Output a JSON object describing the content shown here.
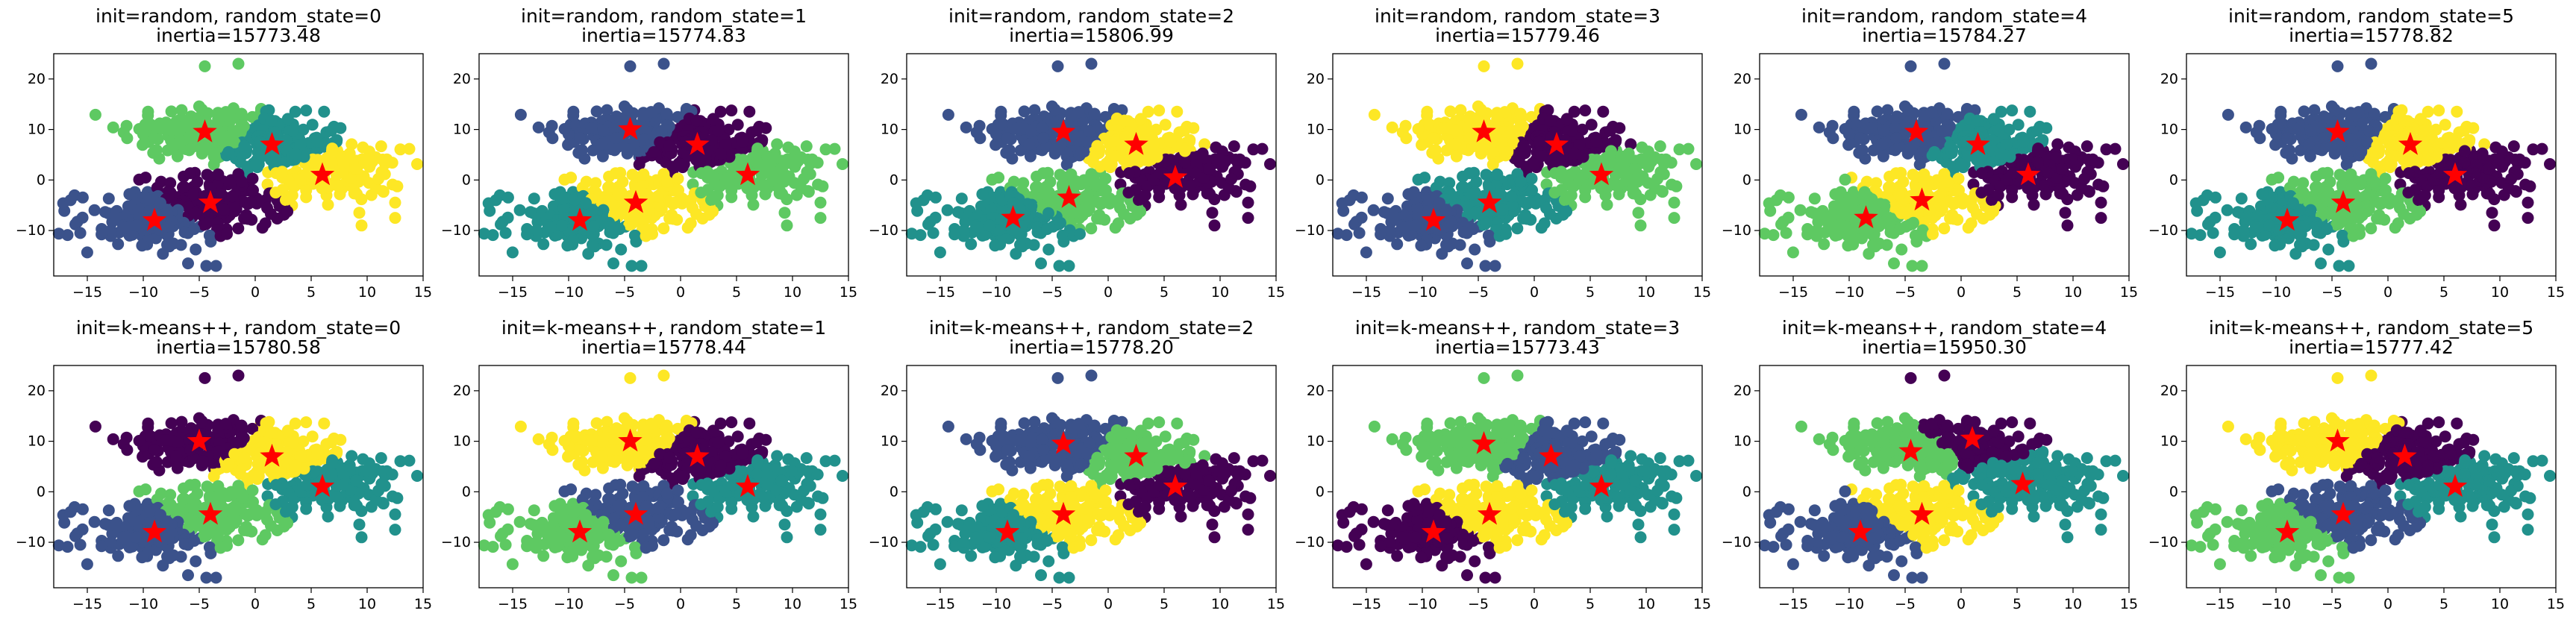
{
  "figure": {
    "rows": 2,
    "cols": 6
  },
  "style": {
    "palette": {
      "viridis_0": "#440154",
      "viridis_1": "#3b528b",
      "viridis_2": "#21918c",
      "viridis_3": "#5ec962",
      "viridis_4": "#fde725"
    },
    "centroid_color": "#ff0000",
    "centroid_marker": "star",
    "axis_color": "#000000",
    "background": "#ffffff"
  },
  "chart_data": [
    {
      "type": "scatter",
      "title": "init=random, random_state=0\ninertia=15773.48",
      "xlim": [
        -18,
        15
      ],
      "ylim": [
        -19,
        25
      ],
      "xticks": [
        -15,
        -10,
        -5,
        0,
        5,
        10,
        15
      ],
      "yticks": [
        -10,
        0,
        10,
        20
      ],
      "grid": false,
      "centroids": [
        {
          "x": -4.5,
          "y": 9.5,
          "cluster": 3
        },
        {
          "x": 1.5,
          "y": 7,
          "cluster": 2
        },
        {
          "x": 6,
          "y": 1,
          "cluster": 4
        },
        {
          "x": -4,
          "y": -4.5,
          "cluster": 0
        },
        {
          "x": -9,
          "y": -8,
          "cluster": 1
        }
      ]
    },
    {
      "type": "scatter",
      "title": "init=random, random_state=1\ninertia=15774.83",
      "xlim": [
        -18,
        15
      ],
      "ylim": [
        -19,
        25
      ],
      "xticks": [
        -15,
        -10,
        -5,
        0,
        5,
        10,
        15
      ],
      "yticks": [
        -10,
        0,
        10,
        20
      ],
      "grid": false,
      "centroids": [
        {
          "x": -4.5,
          "y": 10,
          "cluster": 1
        },
        {
          "x": 1.5,
          "y": 7,
          "cluster": 0
        },
        {
          "x": 6,
          "y": 1,
          "cluster": 3
        },
        {
          "x": -4,
          "y": -4.5,
          "cluster": 4
        },
        {
          "x": -9,
          "y": -8,
          "cluster": 2
        }
      ]
    },
    {
      "type": "scatter",
      "title": "init=random, random_state=2\ninertia=15806.99",
      "xlim": [
        -18,
        15
      ],
      "ylim": [
        -19,
        25
      ],
      "xticks": [
        -15,
        -10,
        -5,
        0,
        5,
        10,
        15
      ],
      "yticks": [
        -10,
        0,
        10,
        20
      ],
      "grid": false,
      "centroids": [
        {
          "x": -4,
          "y": 9.5,
          "cluster": 1
        },
        {
          "x": 2.5,
          "y": 7,
          "cluster": 4
        },
        {
          "x": 6,
          "y": 0.5,
          "cluster": 0
        },
        {
          "x": -3.5,
          "y": -3.5,
          "cluster": 3
        },
        {
          "x": -8.5,
          "y": -7.5,
          "cluster": 2
        }
      ]
    },
    {
      "type": "scatter",
      "title": "init=random, random_state=3\ninertia=15779.46",
      "xlim": [
        -18,
        15
      ],
      "ylim": [
        -19,
        25
      ],
      "xticks": [
        -15,
        -10,
        -5,
        0,
        5,
        10,
        15
      ],
      "yticks": [
        -10,
        0,
        10,
        20
      ],
      "grid": false,
      "centroids": [
        {
          "x": -4.5,
          "y": 9.5,
          "cluster": 4
        },
        {
          "x": 2,
          "y": 7,
          "cluster": 0
        },
        {
          "x": 6,
          "y": 1,
          "cluster": 3
        },
        {
          "x": -4,
          "y": -4.5,
          "cluster": 2
        },
        {
          "x": -9,
          "y": -8,
          "cluster": 1
        }
      ]
    },
    {
      "type": "scatter",
      "title": "init=random, random_state=4\ninertia=15784.27",
      "xlim": [
        -18,
        15
      ],
      "ylim": [
        -19,
        25
      ],
      "xticks": [
        -15,
        -10,
        -5,
        0,
        5,
        10,
        15
      ],
      "yticks": [
        -10,
        0,
        10,
        20
      ],
      "grid": false,
      "centroids": [
        {
          "x": -4,
          "y": 9.5,
          "cluster": 1
        },
        {
          "x": 1.5,
          "y": 7,
          "cluster": 2
        },
        {
          "x": 6,
          "y": 1,
          "cluster": 0
        },
        {
          "x": -3.5,
          "y": -4,
          "cluster": 4
        },
        {
          "x": -8.5,
          "y": -7.5,
          "cluster": 3
        }
      ]
    },
    {
      "type": "scatter",
      "title": "init=random, random_state=5\ninertia=15778.82",
      "xlim": [
        -18,
        15
      ],
      "ylim": [
        -19,
        25
      ],
      "xticks": [
        -15,
        -10,
        -5,
        0,
        5,
        10,
        15
      ],
      "yticks": [
        -10,
        0,
        10,
        20
      ],
      "grid": false,
      "centroids": [
        {
          "x": -4.5,
          "y": 9.5,
          "cluster": 1
        },
        {
          "x": 2,
          "y": 7,
          "cluster": 4
        },
        {
          "x": 6,
          "y": 1,
          "cluster": 0
        },
        {
          "x": -4,
          "y": -4.5,
          "cluster": 3
        },
        {
          "x": -9,
          "y": -8,
          "cluster": 2
        }
      ]
    },
    {
      "type": "scatter",
      "title": "init=k-means++, random_state=0\ninertia=15780.58",
      "xlim": [
        -18,
        15
      ],
      "ylim": [
        -19,
        25
      ],
      "xticks": [
        -15,
        -10,
        -5,
        0,
        5,
        10,
        15
      ],
      "yticks": [
        -10,
        0,
        10,
        20
      ],
      "grid": false,
      "centroids": [
        {
          "x": -5,
          "y": 10,
          "cluster": 0
        },
        {
          "x": 1.5,
          "y": 7,
          "cluster": 4
        },
        {
          "x": 6,
          "y": 1,
          "cluster": 2
        },
        {
          "x": -4,
          "y": -4.5,
          "cluster": 3
        },
        {
          "x": -9,
          "y": -8,
          "cluster": 1
        }
      ]
    },
    {
      "type": "scatter",
      "title": "init=k-means++, random_state=1\ninertia=15778.44",
      "xlim": [
        -18,
        15
      ],
      "ylim": [
        -19,
        25
      ],
      "xticks": [
        -15,
        -10,
        -5,
        0,
        5,
        10,
        15
      ],
      "yticks": [
        -10,
        0,
        10,
        20
      ],
      "grid": false,
      "centroids": [
        {
          "x": -4.5,
          "y": 10,
          "cluster": 4
        },
        {
          "x": 1.5,
          "y": 7,
          "cluster": 0
        },
        {
          "x": 6,
          "y": 1,
          "cluster": 2
        },
        {
          "x": -4,
          "y": -4.5,
          "cluster": 1
        },
        {
          "x": -9,
          "y": -8,
          "cluster": 3
        }
      ]
    },
    {
      "type": "scatter",
      "title": "init=k-means++, random_state=2\ninertia=15778.20",
      "xlim": [
        -18,
        15
      ],
      "ylim": [
        -19,
        25
      ],
      "xticks": [
        -15,
        -10,
        -5,
        0,
        5,
        10,
        15
      ],
      "yticks": [
        -10,
        0,
        10,
        20
      ],
      "grid": false,
      "centroids": [
        {
          "x": -4,
          "y": 9.5,
          "cluster": 1
        },
        {
          "x": 2.5,
          "y": 7,
          "cluster": 3
        },
        {
          "x": 6,
          "y": 1,
          "cluster": 0
        },
        {
          "x": -4,
          "y": -4.5,
          "cluster": 4
        },
        {
          "x": -9,
          "y": -8,
          "cluster": 2
        }
      ]
    },
    {
      "type": "scatter",
      "title": "init=k-means++, random_state=3\ninertia=15773.43",
      "xlim": [
        -18,
        15
      ],
      "ylim": [
        -19,
        25
      ],
      "xticks": [
        -15,
        -10,
        -5,
        0,
        5,
        10,
        15
      ],
      "yticks": [
        -10,
        0,
        10,
        20
      ],
      "grid": false,
      "centroids": [
        {
          "x": -4.5,
          "y": 9.5,
          "cluster": 3
        },
        {
          "x": 1.5,
          "y": 7,
          "cluster": 1
        },
        {
          "x": 6,
          "y": 1,
          "cluster": 2
        },
        {
          "x": -4,
          "y": -4.5,
          "cluster": 4
        },
        {
          "x": -9,
          "y": -8,
          "cluster": 0
        }
      ]
    },
    {
      "type": "scatter",
      "title": "init=k-means++, random_state=4\ninertia=15950.30",
      "xlim": [
        -18,
        15
      ],
      "ylim": [
        -19,
        25
      ],
      "xticks": [
        -15,
        -10,
        -5,
        0,
        5,
        10,
        15
      ],
      "yticks": [
        -10,
        0,
        10,
        20
      ],
      "grid": false,
      "centroids": [
        {
          "x": -4.5,
          "y": 8,
          "cluster": 3
        },
        {
          "x": 1,
          "y": 10.5,
          "cluster": 0
        },
        {
          "x": 5.5,
          "y": 1.5,
          "cluster": 2
        },
        {
          "x": -3.5,
          "y": -4.5,
          "cluster": 4
        },
        {
          "x": -9,
          "y": -8,
          "cluster": 1
        }
      ]
    },
    {
      "type": "scatter",
      "title": "init=k-means++, random_state=5\ninertia=15777.42",
      "xlim": [
        -18,
        15
      ],
      "ylim": [
        -19,
        25
      ],
      "xticks": [
        -15,
        -10,
        -5,
        0,
        5,
        10,
        15
      ],
      "yticks": [
        -10,
        0,
        10,
        20
      ],
      "grid": false,
      "centroids": [
        {
          "x": -4.5,
          "y": 10,
          "cluster": 4
        },
        {
          "x": 1.5,
          "y": 7,
          "cluster": 0
        },
        {
          "x": 6,
          "y": 1,
          "cluster": 2
        },
        {
          "x": -4,
          "y": -4.5,
          "cluster": 1
        },
        {
          "x": -9,
          "y": -8,
          "cluster": 3
        }
      ]
    }
  ]
}
